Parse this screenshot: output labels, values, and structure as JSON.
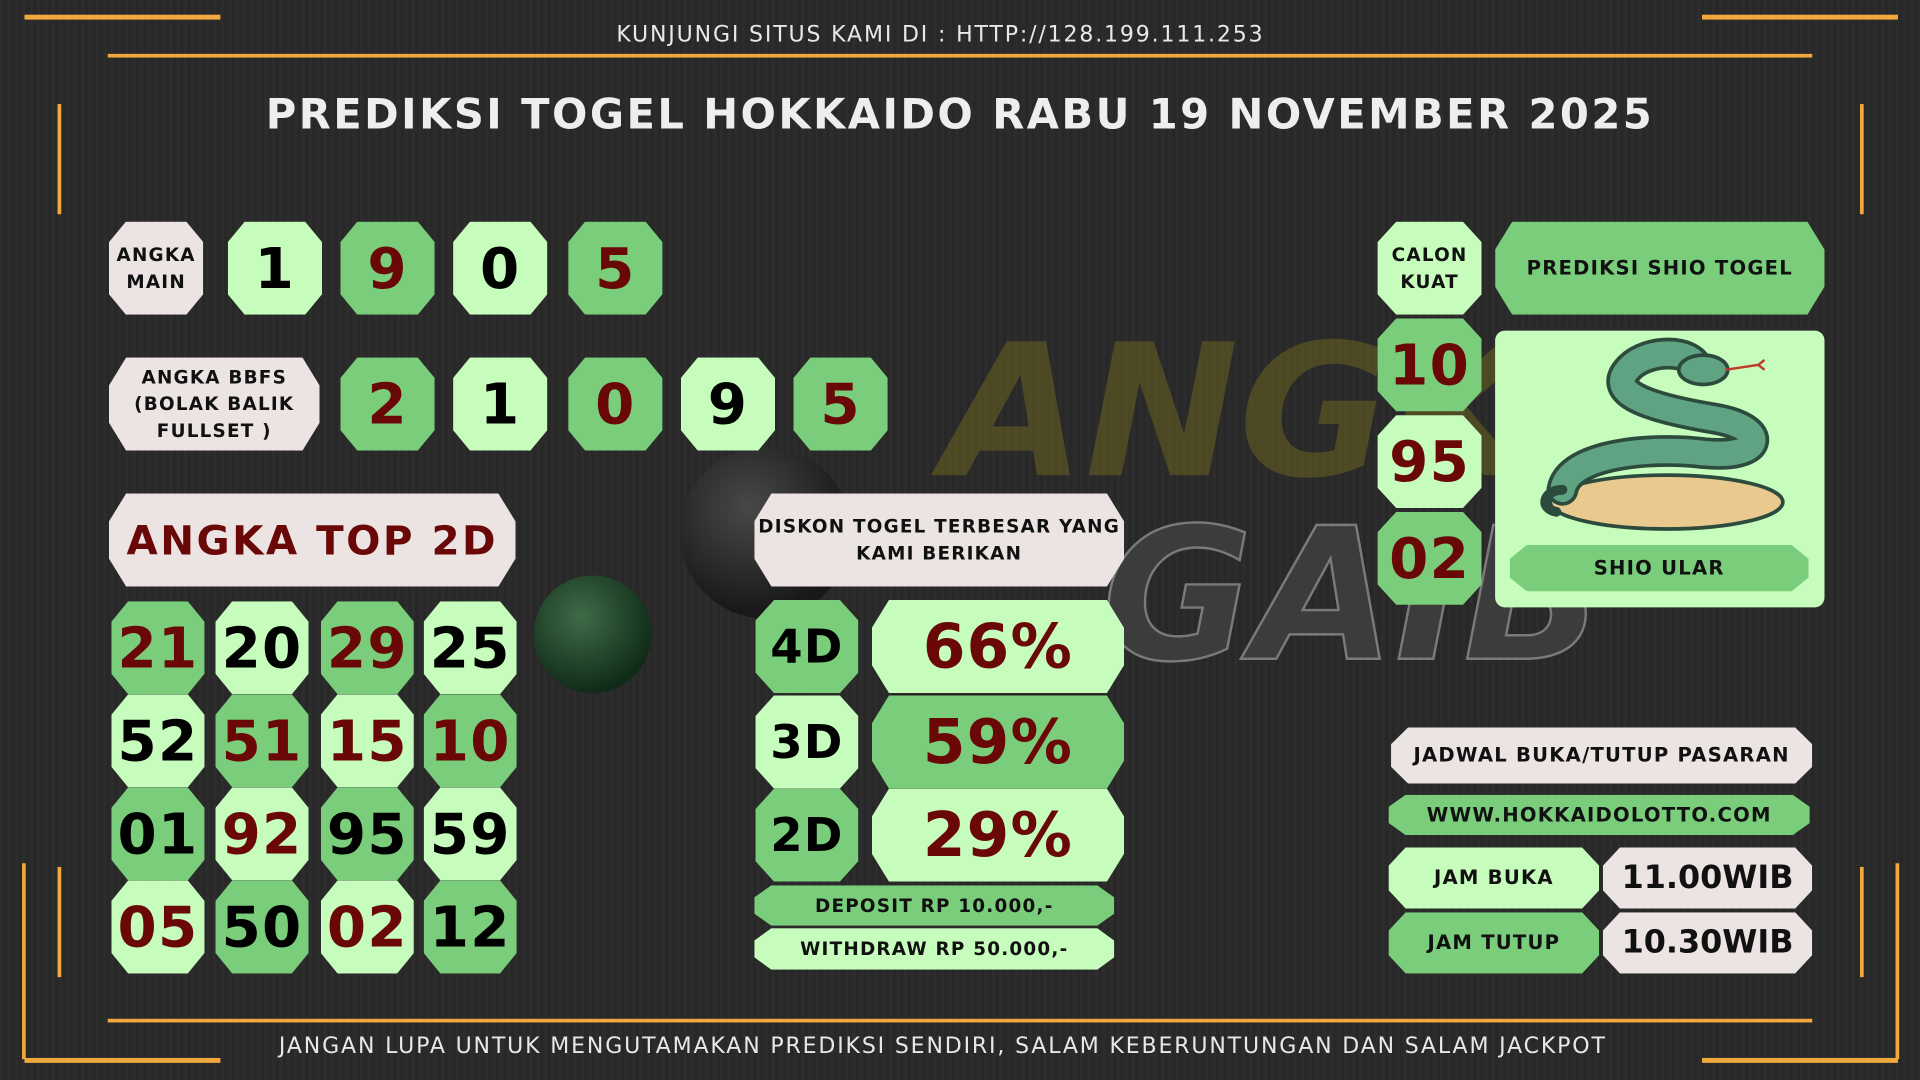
{
  "header": {
    "site_notice": "KUNJUNGI SITUS KAMI DI : HTTP://128.199.111.253",
    "title": "PREDIKSI TOGEL HOKKAIDO RABU 19 NOVEMBER 2025"
  },
  "watermark": {
    "line1": "ANGKA",
    "line2": "GAIB"
  },
  "angka_main": {
    "label": "ANGKA MAIN",
    "digits": [
      "1",
      "9",
      "0",
      "5"
    ]
  },
  "bbfs": {
    "label": "ANGKA BBFS (BOLAK BALIK FULLSET )",
    "digits": [
      "2",
      "1",
      "0",
      "9",
      "5"
    ]
  },
  "top2d": {
    "label": "ANGKA TOP 2D",
    "rows": [
      [
        "21",
        "20",
        "29",
        "25"
      ],
      [
        "52",
        "51",
        "15",
        "10"
      ],
      [
        "01",
        "92",
        "95",
        "59"
      ],
      [
        "05",
        "50",
        "02",
        "12"
      ]
    ]
  },
  "diskon": {
    "label": "DISKON TOGEL TERBESAR YANG KAMI BERIKAN",
    "rows": [
      {
        "type": "4D",
        "value": "66%"
      },
      {
        "type": "3D",
        "value": "59%"
      },
      {
        "type": "2D",
        "value": "29%"
      }
    ],
    "deposit": "DEPOSIT RP 10.000,-",
    "withdraw": "WITHDRAW RP 50.000,-"
  },
  "calon_kuat": {
    "label": "CALON KUAT",
    "numbers": [
      "10",
      "95",
      "02"
    ]
  },
  "shio": {
    "header": "PREDIKSI SHIO TOGEL",
    "name": "SHIO ULAR",
    "icon": "snake-icon"
  },
  "jadwal": {
    "title": "JADWAL BUKA/TUTUP PASARAN",
    "website": "WWW.HOKKAIDOLOTTO.COM",
    "jam_buka_label": "JAM BUKA",
    "jam_buka": "11.00WIB",
    "jam_tutup_label": "JAM TUTUP",
    "jam_tutup": "10.30WIB"
  },
  "footer": "JANGAN LUPA UNTUK MENGUTAMAKAN PREDIKSI SENDIRI, SALAM KEBERUNTUNGAN DAN SALAM JACKPOT",
  "colors": {
    "accent": "#f3a83c",
    "light_green": "#c6fcbc",
    "dark_green": "#7acd7a",
    "maroon": "#6a0808",
    "gray": "#ebe4e2"
  }
}
